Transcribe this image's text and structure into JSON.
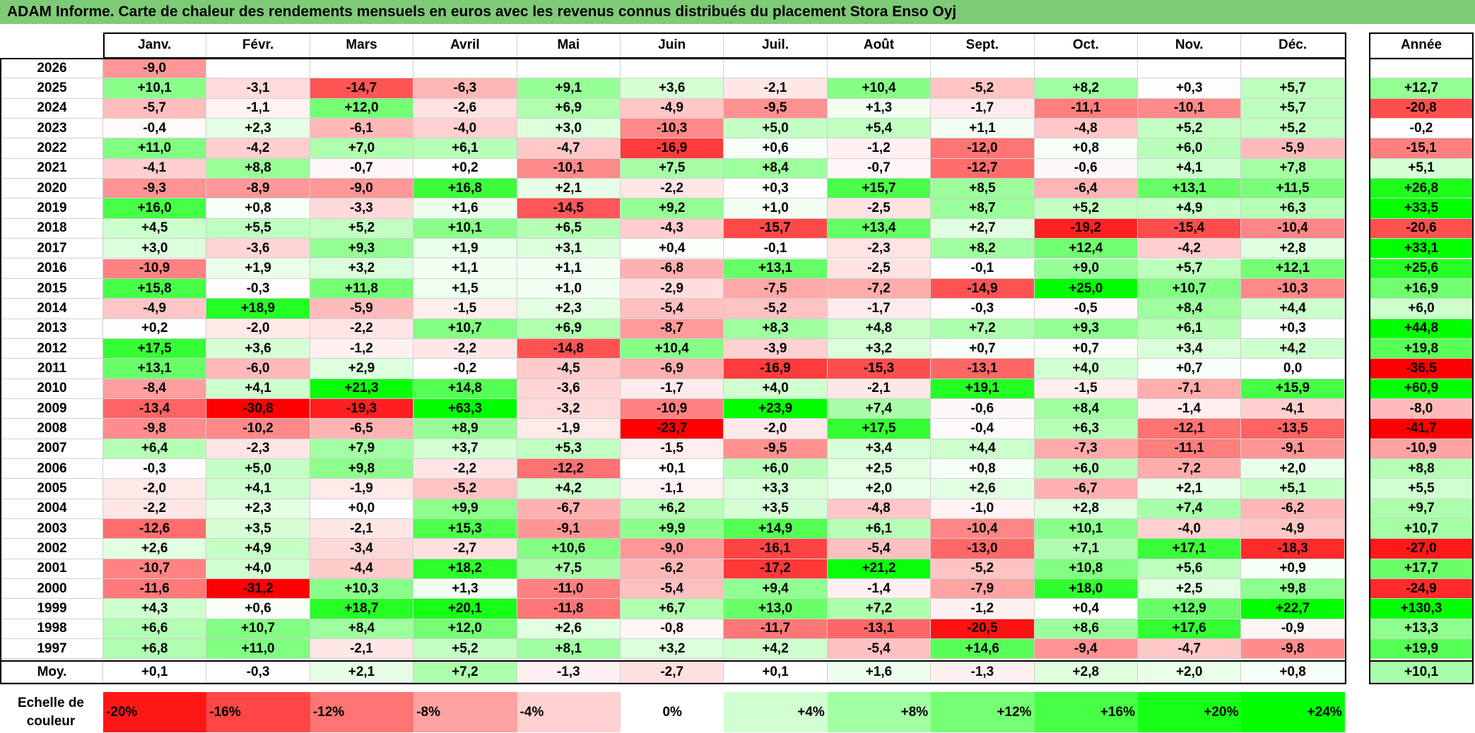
{
  "title": "ADAM Informe. Carte de chaleur des rendements mensuels en euros avec les revenus connus distribués du placement Stora Enso Oyj",
  "colors": {
    "title_bg": "#7ecb77",
    "negative_max": "#ff0000",
    "neutral": "#ffffff",
    "positive_max": "#00ff00"
  },
  "chart_data": {
    "type": "heatmap",
    "title": "ADAM Informe. Carte de chaleur des rendements mensuels en euros avec les revenus connus distribués du placement Stora Enso Oyj",
    "columns": [
      "Janv.",
      "Févr.",
      "Mars",
      "Avril",
      "Mai",
      "Juin",
      "Juil.",
      "Août",
      "Sept.",
      "Oct.",
      "Nov.",
      "Déc."
    ],
    "year_column": "Année",
    "rows": [
      {
        "year": "2026",
        "months": [
          "-9,0",
          "",
          "",
          "",
          "",
          "",
          "",
          "",
          "",
          "",
          "",
          ""
        ],
        "annual": ""
      },
      {
        "year": "2025",
        "months": [
          "+10,1",
          "-3,1",
          "-14,7",
          "-6,3",
          "+9,1",
          "+3,6",
          "-2,1",
          "+10,4",
          "-5,2",
          "+8,2",
          "+0,3",
          "+5,7"
        ],
        "annual": "+12,7"
      },
      {
        "year": "2024",
        "months": [
          "-5,7",
          "-1,1",
          "+12,0",
          "-2,6",
          "+6,9",
          "-4,9",
          "-9,5",
          "+1,3",
          "-1,7",
          "-11,1",
          "-10,1",
          "+5,7"
        ],
        "annual": "-20,8"
      },
      {
        "year": "2023",
        "months": [
          "-0,4",
          "+2,3",
          "-6,1",
          "-4,0",
          "+3,0",
          "-10,3",
          "+5,0",
          "+5,4",
          "+1,1",
          "-4,8",
          "+5,2",
          "+5,2"
        ],
        "annual": "-0,2"
      },
      {
        "year": "2022",
        "months": [
          "+11,0",
          "-4,2",
          "+7,0",
          "+6,1",
          "-4,7",
          "-16,9",
          "+0,6",
          "-1,2",
          "-12,0",
          "+0,8",
          "+6,0",
          "-5,9"
        ],
        "annual": "-15,1"
      },
      {
        "year": "2021",
        "months": [
          "-4,1",
          "+8,8",
          "-0,7",
          "+0,2",
          "-10,1",
          "+7,5",
          "+8,4",
          "-0,7",
          "-12,7",
          "-0,6",
          "+4,1",
          "+7,8"
        ],
        "annual": "+5,1"
      },
      {
        "year": "2020",
        "months": [
          "-9,3",
          "-8,9",
          "-9,0",
          "+16,8",
          "+2,1",
          "-2,2",
          "+0,3",
          "+15,7",
          "+8,5",
          "-6,4",
          "+13,1",
          "+11,5"
        ],
        "annual": "+26,8"
      },
      {
        "year": "2019",
        "months": [
          "+16,0",
          "+0,8",
          "-3,3",
          "+1,6",
          "-14,5",
          "+9,2",
          "+1,0",
          "-2,5",
          "+8,7",
          "+5,2",
          "+4,9",
          "+6,3"
        ],
        "annual": "+33,5"
      },
      {
        "year": "2018",
        "months": [
          "+4,5",
          "+5,5",
          "+5,2",
          "+10,1",
          "+6,5",
          "-4,3",
          "-15,7",
          "+13,4",
          "+2,7",
          "-19,2",
          "-15,4",
          "-10,4"
        ],
        "annual": "-20,6"
      },
      {
        "year": "2017",
        "months": [
          "+3,0",
          "-3,6",
          "+9,3",
          "+1,9",
          "+3,1",
          "+0,4",
          "-0,1",
          "-2,3",
          "+8,2",
          "+12,4",
          "-4,2",
          "+2,8"
        ],
        "annual": "+33,1"
      },
      {
        "year": "2016",
        "months": [
          "-10,9",
          "+1,9",
          "+3,2",
          "+1,1",
          "+1,1",
          "-6,8",
          "+13,1",
          "-2,5",
          "-0,1",
          "+9,0",
          "+5,7",
          "+12,1"
        ],
        "annual": "+25,6"
      },
      {
        "year": "2015",
        "months": [
          "+15,8",
          "-0,3",
          "+11,8",
          "+1,5",
          "+1,0",
          "-2,9",
          "-7,5",
          "-7,2",
          "-14,9",
          "+25,0",
          "+10,7",
          "-10,3"
        ],
        "annual": "+16,9"
      },
      {
        "year": "2014",
        "months": [
          "-4,9",
          "+18,9",
          "-5,9",
          "-1,5",
          "+2,3",
          "-5,4",
          "-5,2",
          "-1,7",
          "-0,3",
          "-0,5",
          "+8,4",
          "+4,4"
        ],
        "annual": "+6,0"
      },
      {
        "year": "2013",
        "months": [
          "+0,2",
          "-2,0",
          "-2,2",
          "+10,7",
          "+6,9",
          "-8,7",
          "+8,3",
          "+4,8",
          "+7,2",
          "+9,3",
          "+6,1",
          "+0,3"
        ],
        "annual": "+44,8"
      },
      {
        "year": "2012",
        "months": [
          "+17,5",
          "+3,6",
          "-1,2",
          "-2,2",
          "-14,8",
          "+10,4",
          "-3,9",
          "+3,2",
          "+0,7",
          "+0,7",
          "+3,4",
          "+4,2"
        ],
        "annual": "+19,8"
      },
      {
        "year": "2011",
        "months": [
          "+13,1",
          "-6,0",
          "+2,9",
          "-0,2",
          "-4,5",
          "-6,9",
          "-16,9",
          "-15,3",
          "-13,1",
          "+4,0",
          "+0,7",
          "0,0"
        ],
        "annual": "-36,5"
      },
      {
        "year": "2010",
        "months": [
          "-8,4",
          "+4,1",
          "+21,3",
          "+14,8",
          "-3,6",
          "-1,7",
          "+4,0",
          "-2,1",
          "+19,1",
          "-1,5",
          "-7,1",
          "+15,9"
        ],
        "annual": "+60,9"
      },
      {
        "year": "2009",
        "months": [
          "-13,4",
          "-30,8",
          "-19,3",
          "+63,3",
          "-3,2",
          "-10,9",
          "+23,9",
          "+7,4",
          "-0,6",
          "+8,4",
          "-1,4",
          "-4,1"
        ],
        "annual": "-8,0"
      },
      {
        "year": "2008",
        "months": [
          "-9,8",
          "-10,2",
          "-6,5",
          "+8,9",
          "-1,9",
          "-23,7",
          "-2,0",
          "+17,5",
          "-0,4",
          "+6,3",
          "-12,1",
          "-13,5"
        ],
        "annual": "-41,7"
      },
      {
        "year": "2007",
        "months": [
          "+6,4",
          "-2,3",
          "+7,9",
          "+3,7",
          "+5,3",
          "-1,5",
          "-9,5",
          "+3,4",
          "+4,4",
          "-7,3",
          "-11,1",
          "-9,1"
        ],
        "annual": "-10,9"
      },
      {
        "year": "2006",
        "months": [
          "-0,3",
          "+5,0",
          "+9,8",
          "-2,2",
          "-12,2",
          "+0,1",
          "+6,0",
          "+2,5",
          "+0,8",
          "+6,0",
          "-7,2",
          "+2,0"
        ],
        "annual": "+8,8"
      },
      {
        "year": "2005",
        "months": [
          "-2,0",
          "+4,1",
          "-1,9",
          "-5,2",
          "+4,2",
          "-1,1",
          "+3,3",
          "+2,0",
          "+2,6",
          "-6,7",
          "+2,1",
          "+5,1"
        ],
        "annual": "+5,5"
      },
      {
        "year": "2004",
        "months": [
          "-2,2",
          "+2,3",
          "+0,0",
          "+9,9",
          "-6,7",
          "+6,2",
          "+3,5",
          "-4,8",
          "-1,0",
          "+2,8",
          "+7,4",
          "-6,2"
        ],
        "annual": "+9,7"
      },
      {
        "year": "2003",
        "months": [
          "-12,6",
          "+3,5",
          "-2,1",
          "+15,3",
          "-9,1",
          "+9,9",
          "+14,9",
          "+6,1",
          "-10,4",
          "+10,1",
          "-4,0",
          "-4,9"
        ],
        "annual": "+10,7"
      },
      {
        "year": "2002",
        "months": [
          "+2,6",
          "+4,9",
          "-3,4",
          "-2,7",
          "+10,6",
          "-9,0",
          "-16,1",
          "-5,4",
          "-13,0",
          "+7,1",
          "+17,1",
          "-18,3"
        ],
        "annual": "-27,0"
      },
      {
        "year": "2001",
        "months": [
          "-10,7",
          "+4,0",
          "-4,4",
          "+18,2",
          "+7,5",
          "-6,2",
          "-17,2",
          "+21,2",
          "-5,2",
          "+10,8",
          "+5,6",
          "+0,9"
        ],
        "annual": "+17,7"
      },
      {
        "year": "2000",
        "months": [
          "-11,6",
          "-31,2",
          "+10,3",
          "+1,3",
          "-11,0",
          "-5,4",
          "+9,4",
          "-1,4",
          "-7,9",
          "+18,0",
          "+2,5",
          "+9,8"
        ],
        "annual": "-24,9"
      },
      {
        "year": "1999",
        "months": [
          "+4,3",
          "+0,6",
          "+18,7",
          "+20,1",
          "-11,8",
          "+6,7",
          "+13,0",
          "+7,2",
          "-1,2",
          "+0,4",
          "+12,9",
          "+22,7"
        ],
        "annual": "+130,3"
      },
      {
        "year": "1998",
        "months": [
          "+6,6",
          "+10,7",
          "+8,4",
          "+12,0",
          "+2,6",
          "-0,8",
          "-11,7",
          "-13,1",
          "-20,5",
          "+8,6",
          "+17,6",
          "-0,9"
        ],
        "annual": "+13,3"
      },
      {
        "year": "1997",
        "months": [
          "+6,8",
          "+11,0",
          "-2,1",
          "+5,2",
          "+8,1",
          "+3,2",
          "+4,2",
          "-5,4",
          "+14,6",
          "-9,4",
          "-4,7",
          "-9,8"
        ],
        "annual": "+19,9"
      }
    ],
    "average": {
      "label": "Moy.",
      "months": [
        "+0,1",
        "-0,3",
        "+2,1",
        "+7,2",
        "-1,3",
        "-2,7",
        "+0,1",
        "+1,6",
        "-1,3",
        "+2,8",
        "+2,0",
        "+0,8"
      ],
      "annual": "+10,1"
    },
    "scale": {
      "label_line1": "Echelle de",
      "label_line2": "couleur",
      "steps": [
        {
          "label": "-20%",
          "value": -20
        },
        {
          "label": "-16%",
          "value": -16
        },
        {
          "label": "-12%",
          "value": -12
        },
        {
          "label": "-8%",
          "value": -8
        },
        {
          "label": "-4%",
          "value": -4
        },
        {
          "label": "0%",
          "value": 0
        },
        {
          "label": "+4%",
          "value": 4
        },
        {
          "label": "+8%",
          "value": 8
        },
        {
          "label": "+12%",
          "value": 12
        },
        {
          "label": "+16%",
          "value": 16
        },
        {
          "label": "+20%",
          "value": 20
        },
        {
          "label": "+24%",
          "value": 24
        }
      ]
    }
  }
}
